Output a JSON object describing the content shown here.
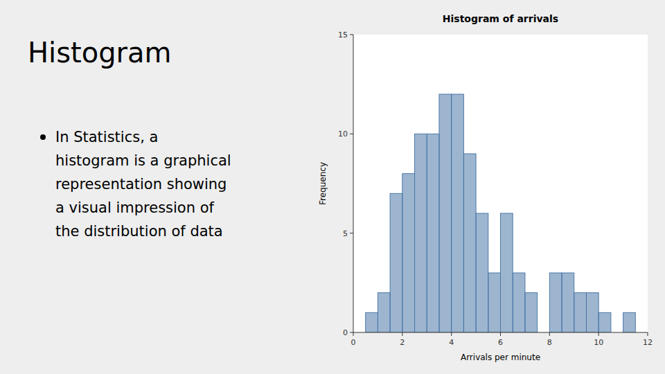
{
  "title": "Histogram",
  "text": [
    "In Statistics, a",
    "histogram is a graphical",
    "representation showing",
    "a visual impression of",
    "the distribution of data"
  ],
  "chart_data": {
    "type": "histogram",
    "title": "Histogram of arrivals",
    "xlabel": "Arrivals per minute",
    "ylabel": "Frequency",
    "bins": [
      0.5,
      1.0,
      1.5,
      2.0,
      2.5,
      3.0,
      3.5,
      4.0,
      4.5,
      5.0,
      5.5,
      6.0,
      6.5,
      7.0,
      7.5,
      8.0,
      8.5,
      9.0,
      9.5,
      10.0,
      10.5,
      11.0,
      11.5
    ],
    "counts": [
      1,
      2,
      7,
      8,
      10,
      10,
      12,
      12,
      9,
      6,
      3,
      6,
      3,
      2,
      0,
      3,
      3,
      2,
      2,
      1,
      0,
      1
    ],
    "color": "#4c78a8",
    "xlim": [
      0,
      12
    ],
    "xticks": [
      0,
      2,
      4,
      6,
      8,
      10,
      12
    ],
    "ylim": [
      0,
      15
    ],
    "yticks": [
      0,
      5,
      10,
      15
    ]
  }
}
